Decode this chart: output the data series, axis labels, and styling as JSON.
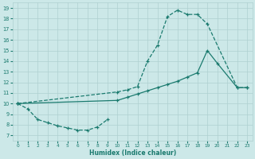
{
  "line_bottom_x": [
    0,
    1,
    2,
    3,
    4,
    5,
    6,
    7,
    8,
    9
  ],
  "line_bottom_y": [
    10.0,
    9.5,
    8.5,
    8.2,
    7.9,
    7.7,
    7.5,
    7.5,
    7.8,
    8.5
  ],
  "line_top_x": [
    0,
    10,
    11,
    12,
    13,
    14,
    15,
    16,
    17,
    18,
    19,
    22,
    23
  ],
  "line_top_y": [
    10.0,
    11.1,
    11.3,
    11.6,
    14.0,
    15.5,
    18.2,
    18.8,
    18.4,
    18.4,
    17.5,
    11.5,
    11.5
  ],
  "line_mid_x": [
    0,
    10,
    11,
    12,
    13,
    14,
    15,
    16,
    17,
    18,
    19,
    20,
    22,
    23
  ],
  "line_mid_y": [
    10.0,
    10.3,
    10.6,
    10.9,
    11.2,
    11.5,
    11.8,
    12.1,
    12.5,
    12.9,
    15.0,
    13.8,
    11.5,
    11.5
  ],
  "color": "#1a7a6e",
  "bg_color": "#cce8e8",
  "grid_color": "#afd0d0",
  "xlabel": "Humidex (Indice chaleur)",
  "xlim": [
    -0.5,
    23.5
  ],
  "ylim": [
    6.5,
    19.5
  ],
  "yticks": [
    7,
    8,
    9,
    10,
    11,
    12,
    13,
    14,
    15,
    16,
    17,
    18,
    19
  ],
  "xticks": [
    0,
    1,
    2,
    3,
    4,
    5,
    6,
    7,
    8,
    9,
    10,
    11,
    12,
    13,
    14,
    15,
    16,
    17,
    18,
    19,
    20,
    21,
    22,
    23
  ]
}
